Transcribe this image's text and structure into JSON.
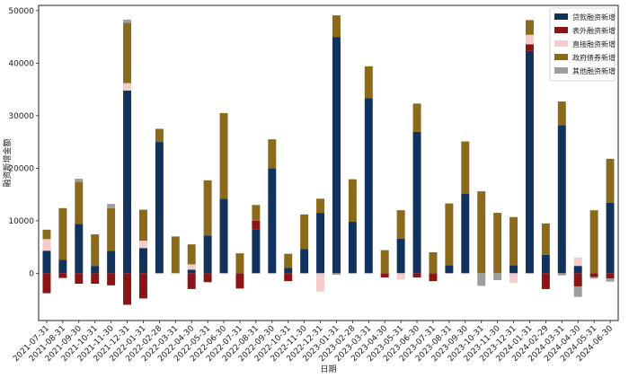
{
  "chart_data": {
    "type": "bar",
    "stacked": true,
    "title": "",
    "xlabel": "日期",
    "ylabel": "融资新增金额",
    "ylim": [
      -9000,
      51000
    ],
    "yticks": [
      0,
      10000,
      20000,
      30000,
      40000,
      50000
    ],
    "legend_position": "top-right",
    "categories": [
      "2021-07-31",
      "2021-08-31",
      "2021-09-30",
      "2021-10-31",
      "2021-11-30",
      "2021-12-31",
      "2022-01-31",
      "2022-02-28",
      "2022-03-31",
      "2022-04-30",
      "2022-05-31",
      "2022-06-30",
      "2022-07-31",
      "2022-08-31",
      "2022-09-30",
      "2022-10-31",
      "2022-11-30",
      "2022-12-31",
      "2023-01-31",
      "2023-02-28",
      "2023-03-31",
      "2023-04-30",
      "2023-05-31",
      "2023-06-30",
      "2023-07-31",
      "2023-08-31",
      "2023-09-30",
      "2023-10-31",
      "2023-11-30",
      "2023-12-31",
      "2024-01-31",
      "2024-02-29",
      "2024-03-31",
      "2024-04-30",
      "2024-05-31",
      "2024-06-30"
    ],
    "series": [
      {
        "name": "贷款融资新增",
        "color": "#12325e",
        "values": [
          4300,
          2600,
          9400,
          1400,
          4300,
          34800,
          4800,
          25000,
          0,
          700,
          7200,
          14200,
          0,
          8400,
          20000,
          1000,
          4600,
          11500,
          45000,
          9800,
          33300,
          0,
          6600,
          26900,
          0,
          1500,
          15100,
          0,
          0,
          1500,
          42300,
          3500,
          28200,
          1400,
          0,
          13400
        ]
      },
      {
        "name": "表外融资新增",
        "color": "#8b1516",
        "values": [
          -3800,
          -900,
          -2000,
          -2000,
          -2300,
          -6000,
          -4800,
          0,
          0,
          -3000,
          -1700,
          0,
          -2900,
          1600,
          0,
          -1500,
          0,
          0,
          0,
          0,
          0,
          -800,
          0,
          -800,
          -1500,
          0,
          0,
          0,
          0,
          0,
          1300,
          -3000,
          0,
          -2500,
          -700,
          -1000
        ]
      },
      {
        "name": "直接融资新增",
        "color": "#f4cccc",
        "values": [
          2200,
          0,
          0,
          0,
          0,
          1400,
          1400,
          0,
          0,
          1000,
          0,
          0,
          0,
          0,
          0,
          0,
          0,
          -3500,
          0,
          0,
          0,
          0,
          -1200,
          0,
          0,
          0,
          0,
          0,
          0,
          -1800,
          1800,
          0,
          0,
          1600,
          0,
          0
        ]
      },
      {
        "name": "政府债券新增",
        "color": "#8c6a1c",
        "values": [
          1800,
          9800,
          8000,
          6000,
          8100,
          11500,
          5900,
          2500,
          7000,
          3800,
          10500,
          16300,
          3800,
          3000,
          5500,
          2700,
          6600,
          2700,
          4100,
          8100,
          6100,
          4400,
          5400,
          5400,
          4000,
          11800,
          10000,
          15600,
          11500,
          9200,
          2800,
          6000,
          4500,
          0,
          12000,
          8400
        ]
      },
      {
        "name": "其他融资新增",
        "color": "#9e9e9e",
        "values": [
          0,
          0,
          600,
          0,
          800,
          600,
          0,
          0,
          0,
          0,
          0,
          0,
          0,
          0,
          0,
          0,
          0,
          0,
          -300,
          0,
          0,
          0,
          0,
          0,
          0,
          0,
          0,
          -2400,
          -1300,
          0,
          0,
          0,
          -400,
          -2000,
          -300,
          -600
        ]
      }
    ]
  }
}
